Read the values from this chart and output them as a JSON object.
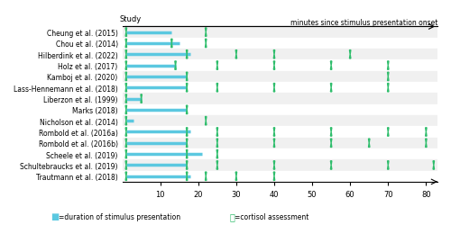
{
  "title": "minutes since stimulus presentation onset",
  "xlabel": "",
  "ylabel": "Study",
  "x_min": 0,
  "x_max": 83,
  "x_ticks": [
    10,
    20,
    30,
    40,
    50,
    60,
    70,
    80
  ],
  "studies": [
    "Cheung et al. (2015)",
    "Chou et al. (2014)",
    "Hilberdink et al. (2022)",
    "Holz et al. (2017)",
    "Kamboj et al. (2020)",
    "Lass-Hennemann et al. (2018)",
    "Liberzon et al. (1999)",
    "Marks (2018)",
    "Nicholson et al. (2014)",
    "Rombold et al. (2016a)",
    "Rombold et al. (2016b)",
    "Scheele et al. (2019)",
    "Schultebraucks et al. (2019)",
    "Trautmann et al. (2018)"
  ],
  "bar_starts": [
    1,
    1,
    1,
    1,
    1,
    1,
    1,
    1,
    1,
    1,
    1,
    1,
    1,
    1
  ],
  "bar_ends": [
    13,
    15,
    18,
    14,
    17,
    17,
    5,
    17,
    3,
    18,
    17,
    21,
    17,
    18
  ],
  "cortisol_points": [
    [
      1,
      22
    ],
    [
      1,
      13,
      22
    ],
    [
      1,
      17,
      30,
      40,
      60
    ],
    [
      1,
      14,
      25,
      40,
      55,
      70
    ],
    [
      1,
      17,
      70
    ],
    [
      1,
      17,
      25,
      40,
      55,
      70
    ],
    [
      1,
      5
    ],
    [
      1,
      17
    ],
    [
      1,
      22
    ],
    [
      1,
      17,
      25,
      40,
      55,
      70,
      80
    ],
    [
      1,
      17,
      25,
      40,
      55,
      65,
      80
    ],
    [
      1,
      17,
      25
    ],
    [
      1,
      17,
      25,
      40,
      55,
      70,
      82
    ],
    [
      1,
      17,
      22,
      30,
      40
    ]
  ],
  "bar_color": "#5bc8e0",
  "cortisol_color": "#2ebd6b",
  "background_color": "#ffffff",
  "row_colors": [
    "#f0f0f0",
    "#ffffff"
  ],
  "legend_bar_label": "=duration of stimulus presentation",
  "legend_cortisol_label": "=cortisol assessment"
}
